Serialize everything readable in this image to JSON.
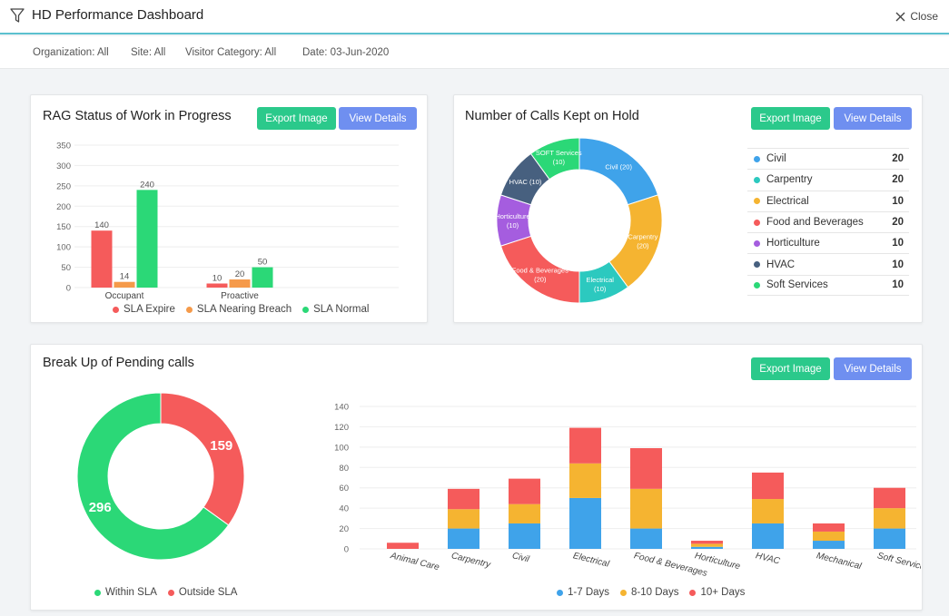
{
  "header": {
    "title": "HD Performance Dashboard",
    "close_label": "Close"
  },
  "filters": {
    "organization": "Organization: All",
    "site": "Site: All",
    "visitor_category": "Visitor Category: All",
    "date": "Date: 03-Jun-2020"
  },
  "buttons": {
    "export_label": "Export Image",
    "view_label": "View Details"
  },
  "colors": {
    "red": "#f55b5b",
    "orange": "#f59a4a",
    "green": "#2bd877",
    "blue": "#3fa3ea",
    "teal": "#2cc9bf",
    "yellow": "#f5b431",
    "purple": "#a55ddf",
    "slate": "#47607f",
    "lightgreen": "#2bd877"
  },
  "rag": {
    "title": "RAG Status of Work in Progress",
    "chart_data": {
      "type": "bar",
      "categories": [
        "Occupant",
        "Proactive"
      ],
      "series": [
        {
          "name": "SLA Expire",
          "values": [
            140,
            10
          ],
          "color": "#f55b5b"
        },
        {
          "name": "SLA Nearing Breach",
          "values": [
            14,
            20
          ],
          "color": "#f59a4a"
        },
        {
          "name": "SLA Normal",
          "values": [
            240,
            50
          ],
          "color": "#2bd877"
        }
      ],
      "ylim": [
        0,
        350
      ],
      "yticks": [
        "0",
        "50",
        "100",
        "150",
        "200",
        "250",
        "300",
        "350"
      ],
      "legend": "bottom"
    }
  },
  "hold": {
    "title": "Number of Calls Kept on Hold",
    "chart_data": {
      "type": "pie",
      "labels": [
        "Civil",
        "Carpentry",
        "Electrical",
        "Food and Beverages",
        "Horticulture",
        "HVAC",
        "Soft Services"
      ],
      "slice_labels": [
        "Civil (20)",
        "Carpentry (20)",
        "Electrical (10)",
        "Food & Beverages (20)",
        "Horticulture (10)",
        "HVAC (10)",
        "SOFT Services (10)"
      ],
      "values": [
        20,
        20,
        10,
        20,
        10,
        10,
        10
      ],
      "value_labels": [
        "20",
        "20",
        "10",
        "20",
        "10",
        "10",
        "10"
      ],
      "colors": [
        "#3fa3ea",
        "#f5b431",
        "#2cc9bf",
        "#f55b5b",
        "#a55ddf",
        "#47607f",
        "#2bd877"
      ],
      "legend": "right"
    }
  },
  "pending": {
    "title": "Break Up of Pending calls",
    "donut": {
      "type": "pie",
      "labels": [
        "Within SLA",
        "Outside SLA"
      ],
      "values": [
        296,
        159
      ],
      "value_labels": [
        "296",
        "159"
      ],
      "colors": [
        "#2bd877",
        "#f55b5b"
      ],
      "legend": "bottom"
    },
    "stacked": {
      "type": "bar",
      "categories": [
        "Animal Care",
        "Carpentry",
        "Civil",
        "Electrical",
        "Food & Beverages",
        "Horticulture",
        "HVAC",
        "Mechanical",
        "Soft Services"
      ],
      "series": [
        {
          "name": "1-7 Days",
          "values": [
            0,
            20,
            25,
            50,
            20,
            2,
            25,
            8,
            20
          ],
          "color": "#3fa3ea"
        },
        {
          "name": "8-10 Days",
          "values": [
            0,
            19,
            19,
            34,
            39,
            3,
            24,
            9,
            20
          ],
          "color": "#f5b431"
        },
        {
          "name": "10+ Days",
          "values": [
            6,
            20,
            25,
            35,
            40,
            3,
            26,
            8,
            20
          ],
          "color": "#f55b5b"
        }
      ],
      "ylim": [
        0,
        140
      ],
      "yticks": [
        "0",
        "20",
        "40",
        "60",
        "80",
        "100",
        "120",
        "140"
      ],
      "legend": "bottom"
    }
  }
}
